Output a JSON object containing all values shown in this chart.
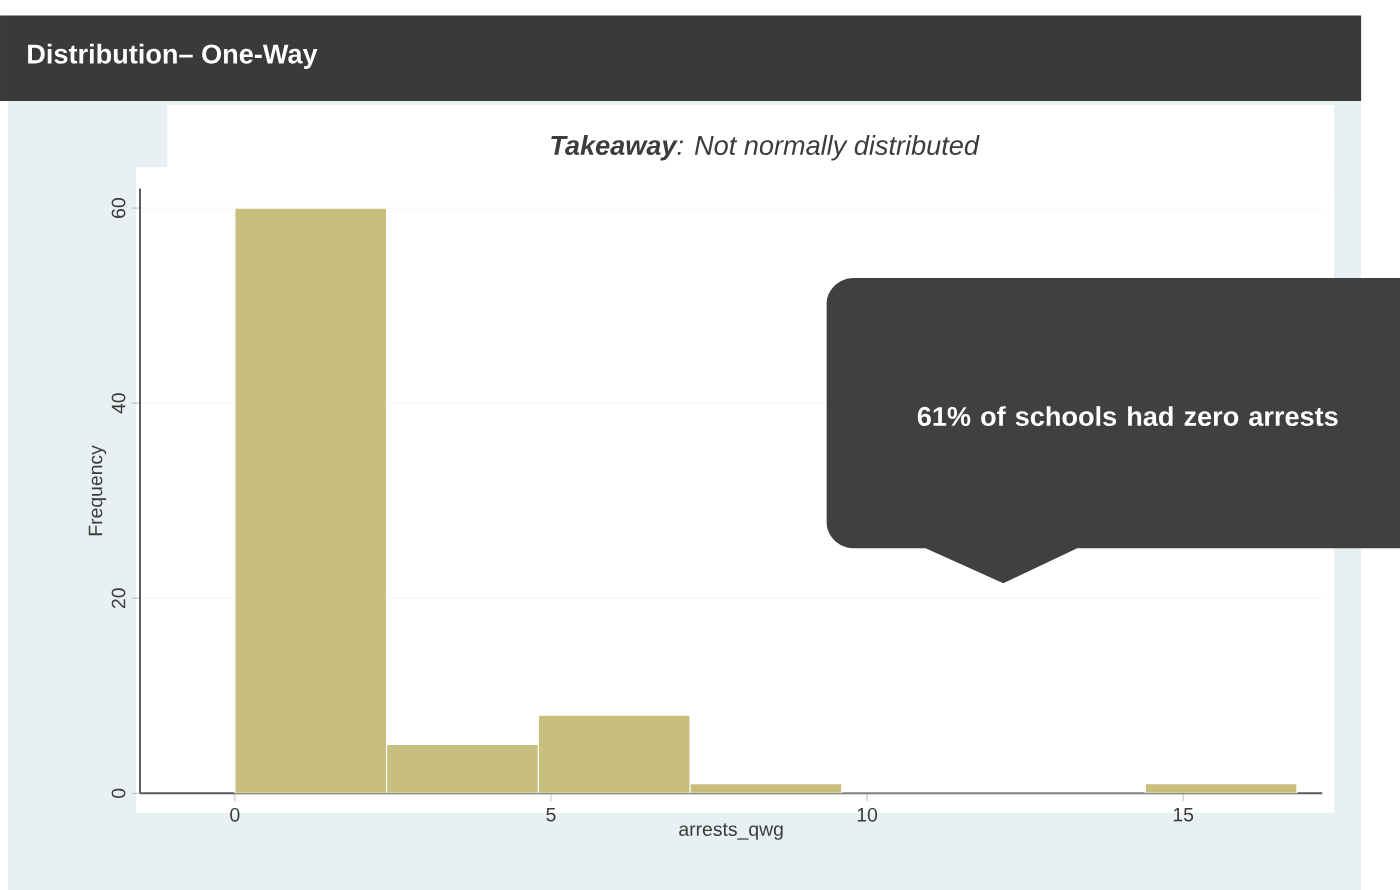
{
  "chart_data": {
    "type": "histogram",
    "title": "Distribution– One-Way",
    "subtitle": "**Takeaway**: Not normally distributed",
    "xlabel": "arrests_qwg",
    "ylabel": "Frequency",
    "bins": [
      0,
      2.4,
      4.8,
      7.2,
      9.6,
      12,
      14.4,
      16.8
    ],
    "values": [
      60,
      5,
      8,
      1,
      0,
      0,
      1
    ],
    "color": "#c8bf7e",
    "xlim": [
      -1.5,
      17.2
    ],
    "ylim": [
      0,
      62
    ],
    "xticks": [
      0,
      5,
      10,
      15
    ],
    "yticks": [
      0,
      20,
      40,
      60
    ],
    "grid": "y",
    "annotations": [
      "61% of schools had zero arrests"
    ]
  }
}
